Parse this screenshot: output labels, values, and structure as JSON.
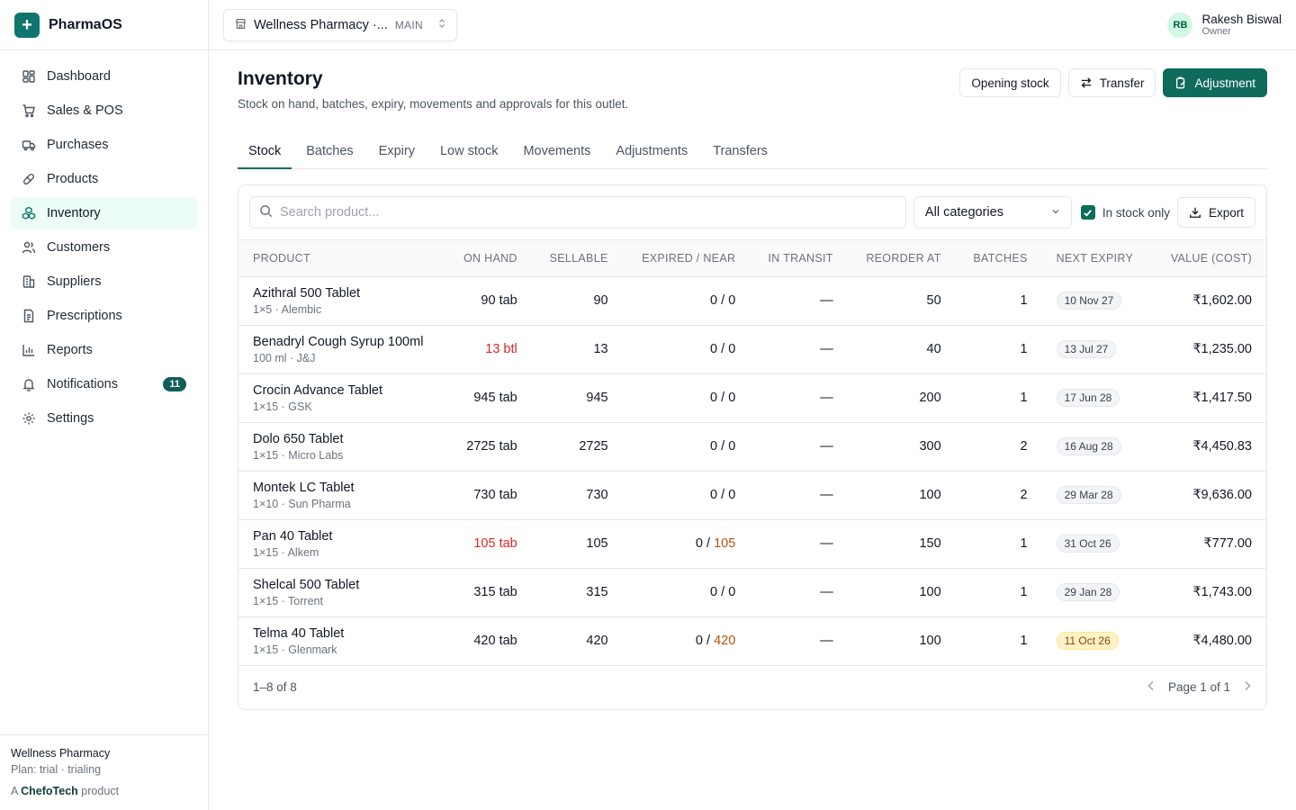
{
  "brand": {
    "name": "PharmaOS"
  },
  "nav": [
    {
      "label": "Dashboard",
      "icon": "dashboard-icon",
      "active": false
    },
    {
      "label": "Sales & POS",
      "icon": "cart-icon",
      "active": false
    },
    {
      "label": "Purchases",
      "icon": "truck-icon",
      "active": false
    },
    {
      "label": "Products",
      "icon": "pill-icon",
      "active": false
    },
    {
      "label": "Inventory",
      "icon": "boxes-icon",
      "active": true
    },
    {
      "label": "Customers",
      "icon": "users-icon",
      "active": false
    },
    {
      "label": "Suppliers",
      "icon": "building-icon",
      "active": false
    },
    {
      "label": "Prescriptions",
      "icon": "file-icon",
      "active": false
    },
    {
      "label": "Reports",
      "icon": "chart-icon",
      "active": false
    },
    {
      "label": "Notifications",
      "icon": "bell-icon",
      "active": false,
      "badge": "11"
    },
    {
      "label": "Settings",
      "icon": "gear-icon",
      "active": false
    }
  ],
  "sidebar_footer": {
    "org": "Wellness Pharmacy",
    "plan": "Plan: trial · trialing",
    "prefix": "A",
    "company": "ChefoTech",
    "suffix": "product"
  },
  "topbar": {
    "outlet_name": "Wellness Pharmacy ·...",
    "outlet_tag": "MAIN",
    "user_initials": "RB",
    "user_name": "Rakesh Biswal",
    "user_role": "Owner"
  },
  "page": {
    "title": "Inventory",
    "subtitle": "Stock on hand, batches, expiry, movements and approvals for this outlet.",
    "actions": {
      "opening": "Opening stock",
      "transfer": "Transfer",
      "adjustment": "Adjustment"
    }
  },
  "tabs": [
    {
      "label": "Stock",
      "active": true
    },
    {
      "label": "Batches"
    },
    {
      "label": "Expiry"
    },
    {
      "label": "Low stock"
    },
    {
      "label": "Movements"
    },
    {
      "label": "Adjustments"
    },
    {
      "label": "Transfers"
    }
  ],
  "toolbar": {
    "search_placeholder": "Search product...",
    "category": "All categories",
    "in_stock_label": "In stock only",
    "export": "Export"
  },
  "table": {
    "headers": [
      "PRODUCT",
      "ON HAND",
      "SELLABLE",
      "EXPIRED / NEAR",
      "IN TRANSIT",
      "REORDER AT",
      "BATCHES",
      "NEXT EXPIRY",
      "VALUE (COST)"
    ],
    "rows": [
      {
        "name": "Azithral 500 Tablet",
        "meta": "1×5 · Alembic",
        "on_hand": "90 tab",
        "low": false,
        "sellable": "90",
        "expired": "0",
        "near": "0",
        "near_flag": false,
        "transit": "—",
        "reorder": "50",
        "batches": "1",
        "expiry": "10 Nov 27",
        "expiry_warn": false,
        "value": "₹1,602.00"
      },
      {
        "name": "Benadryl Cough Syrup 100ml",
        "meta": "100 ml · J&J",
        "on_hand": "13 btl",
        "low": true,
        "sellable": "13",
        "expired": "0",
        "near": "0",
        "near_flag": false,
        "transit": "—",
        "reorder": "40",
        "batches": "1",
        "expiry": "13 Jul 27",
        "expiry_warn": false,
        "value": "₹1,235.00"
      },
      {
        "name": "Crocin Advance Tablet",
        "meta": "1×15 · GSK",
        "on_hand": "945 tab",
        "low": false,
        "sellable": "945",
        "expired": "0",
        "near": "0",
        "near_flag": false,
        "transit": "—",
        "reorder": "200",
        "batches": "1",
        "expiry": "17 Jun 28",
        "expiry_warn": false,
        "value": "₹1,417.50"
      },
      {
        "name": "Dolo 650 Tablet",
        "meta": "1×15 · Micro Labs",
        "on_hand": "2725 tab",
        "low": false,
        "sellable": "2725",
        "expired": "0",
        "near": "0",
        "near_flag": false,
        "transit": "—",
        "reorder": "300",
        "batches": "2",
        "expiry": "16 Aug 28",
        "expiry_warn": false,
        "value": "₹4,450.83"
      },
      {
        "name": "Montek LC Tablet",
        "meta": "1×10 · Sun Pharma",
        "on_hand": "730 tab",
        "low": false,
        "sellable": "730",
        "expired": "0",
        "near": "0",
        "near_flag": false,
        "transit": "—",
        "reorder": "100",
        "batches": "2",
        "expiry": "29 Mar 28",
        "expiry_warn": false,
        "value": "₹9,636.00"
      },
      {
        "name": "Pan 40 Tablet",
        "meta": "1×15 · Alkem",
        "on_hand": "105 tab",
        "low": true,
        "sellable": "105",
        "expired": "0",
        "near": "105",
        "near_flag": true,
        "transit": "—",
        "reorder": "150",
        "batches": "1",
        "expiry": "31 Oct 26",
        "expiry_warn": false,
        "value": "₹777.00"
      },
      {
        "name": "Shelcal 500 Tablet",
        "meta": "1×15 · Torrent",
        "on_hand": "315 tab",
        "low": false,
        "sellable": "315",
        "expired": "0",
        "near": "0",
        "near_flag": false,
        "transit": "—",
        "reorder": "100",
        "batches": "1",
        "expiry": "29 Jan 28",
        "expiry_warn": false,
        "value": "₹1,743.00"
      },
      {
        "name": "Telma 40 Tablet",
        "meta": "1×15 · Glenmark",
        "on_hand": "420 tab",
        "low": false,
        "sellable": "420",
        "expired": "0",
        "near": "420",
        "near_flag": true,
        "transit": "—",
        "reorder": "100",
        "batches": "1",
        "expiry": "11 Oct 26",
        "expiry_warn": true,
        "value": "₹4,480.00"
      }
    ],
    "count": "1–8 of 8",
    "page": "Page 1 of 1"
  }
}
